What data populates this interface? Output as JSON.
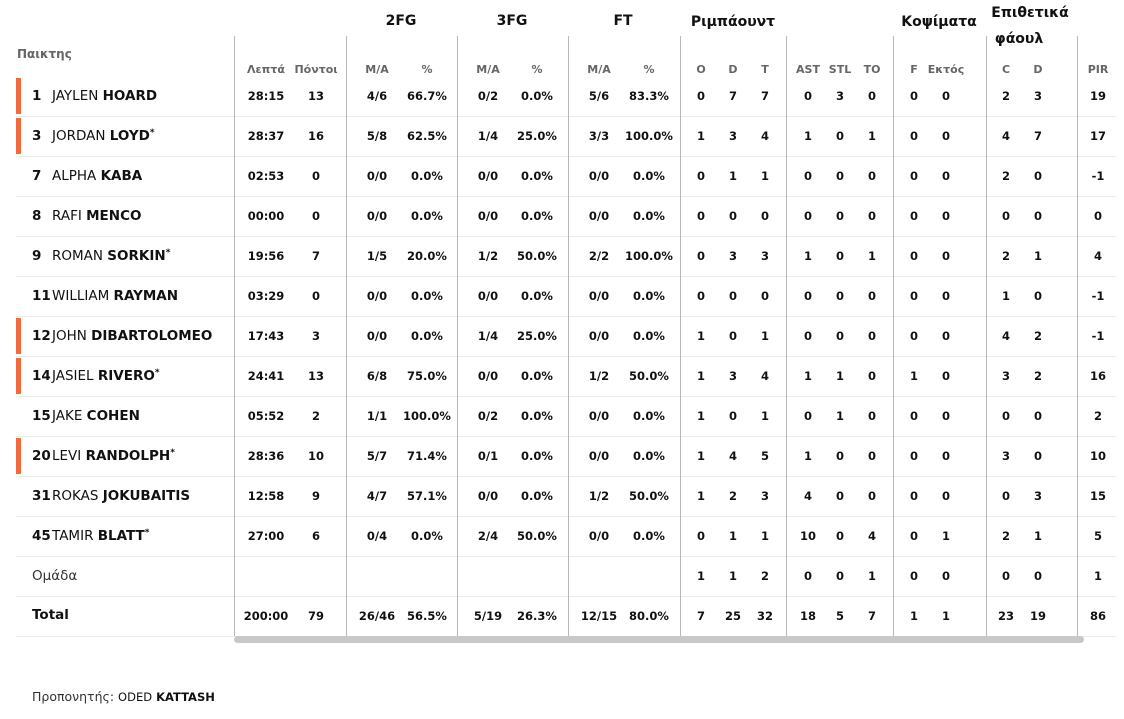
{
  "header": {
    "player_label": "Παικτης",
    "groups": {
      "fg2": "2FG",
      "fg3": "3FG",
      "ft": "FT",
      "reb": "Ριμπάουντ",
      "blk": "Κοψίματα",
      "fouls_line1": "Επιθετικά",
      "fouls_line2": "φάουλ"
    },
    "columns": [
      "Λεπτά",
      "Πόντοι",
      "Μ/Α",
      "%",
      "Μ/Α",
      "%",
      "Μ/Α",
      "%",
      "O",
      "D",
      "T",
      "AST",
      "STL",
      "TO",
      "F",
      "Εκτός",
      "C",
      "D",
      "PIR"
    ]
  },
  "accent_color": "#f26a3b",
  "players": [
    {
      "number": "1",
      "first": "JAYLEN",
      "last": "HOARD",
      "starter": true,
      "star": false,
      "stats": [
        "28:15",
        "13",
        "4/6",
        "66.7%",
        "0/2",
        "0.0%",
        "5/6",
        "83.3%",
        "0",
        "7",
        "7",
        "0",
        "3",
        "0",
        "0",
        "0",
        "2",
        "3",
        "19"
      ]
    },
    {
      "number": "3",
      "first": "JORDAN",
      "last": "LOYD",
      "starter": true,
      "star": true,
      "stats": [
        "28:37",
        "16",
        "5/8",
        "62.5%",
        "1/4",
        "25.0%",
        "3/3",
        "100.0%",
        "1",
        "3",
        "4",
        "1",
        "0",
        "1",
        "0",
        "0",
        "4",
        "7",
        "17"
      ]
    },
    {
      "number": "7",
      "first": "ALPHA",
      "last": "KABA",
      "starter": false,
      "star": false,
      "stats": [
        "02:53",
        "0",
        "0/0",
        "0.0%",
        "0/0",
        "0.0%",
        "0/0",
        "0.0%",
        "0",
        "1",
        "1",
        "0",
        "0",
        "0",
        "0",
        "0",
        "2",
        "0",
        "-1"
      ]
    },
    {
      "number": "8",
      "first": "RAFI",
      "last": "MENCO",
      "starter": false,
      "star": false,
      "stats": [
        "00:00",
        "0",
        "0/0",
        "0.0%",
        "0/0",
        "0.0%",
        "0/0",
        "0.0%",
        "0",
        "0",
        "0",
        "0",
        "0",
        "0",
        "0",
        "0",
        "0",
        "0",
        "0"
      ]
    },
    {
      "number": "9",
      "first": "ROMAN",
      "last": "SORKIN",
      "starter": false,
      "star": true,
      "stats": [
        "19:56",
        "7",
        "1/5",
        "20.0%",
        "1/2",
        "50.0%",
        "2/2",
        "100.0%",
        "0",
        "3",
        "3",
        "1",
        "0",
        "1",
        "0",
        "0",
        "2",
        "1",
        "4"
      ]
    },
    {
      "number": "11",
      "first": "WILLIAM",
      "last": "RAYMAN",
      "starter": false,
      "star": false,
      "stats": [
        "03:29",
        "0",
        "0/0",
        "0.0%",
        "0/0",
        "0.0%",
        "0/0",
        "0.0%",
        "0",
        "0",
        "0",
        "0",
        "0",
        "0",
        "0",
        "0",
        "1",
        "0",
        "-1"
      ]
    },
    {
      "number": "12",
      "first": "JOHN",
      "last": "DIBARTOLOMEO",
      "starter": true,
      "star": false,
      "stats": [
        "17:43",
        "3",
        "0/0",
        "0.0%",
        "1/4",
        "25.0%",
        "0/0",
        "0.0%",
        "1",
        "0",
        "1",
        "0",
        "0",
        "0",
        "0",
        "0",
        "4",
        "2",
        "-1"
      ]
    },
    {
      "number": "14",
      "first": "JASIEL",
      "last": "RIVERO",
      "starter": true,
      "star": true,
      "stats": [
        "24:41",
        "13",
        "6/8",
        "75.0%",
        "0/0",
        "0.0%",
        "1/2",
        "50.0%",
        "1",
        "3",
        "4",
        "1",
        "1",
        "0",
        "1",
        "0",
        "3",
        "2",
        "16"
      ]
    },
    {
      "number": "15",
      "first": "JAKE",
      "last": "COHEN",
      "starter": false,
      "star": false,
      "stats": [
        "05:52",
        "2",
        "1/1",
        "100.0%",
        "0/2",
        "0.0%",
        "0/0",
        "0.0%",
        "1",
        "0",
        "1",
        "0",
        "1",
        "0",
        "0",
        "0",
        "0",
        "0",
        "2"
      ]
    },
    {
      "number": "20",
      "first": "LEVI",
      "last": "RANDOLPH",
      "starter": true,
      "star": true,
      "stats": [
        "28:36",
        "10",
        "5/7",
        "71.4%",
        "0/1",
        "0.0%",
        "0/0",
        "0.0%",
        "1",
        "4",
        "5",
        "1",
        "0",
        "0",
        "0",
        "0",
        "3",
        "0",
        "10"
      ]
    },
    {
      "number": "31",
      "first": "ROKAS",
      "last": "JOKUBAITIS",
      "starter": false,
      "star": false,
      "stats": [
        "12:58",
        "9",
        "4/7",
        "57.1%",
        "0/0",
        "0.0%",
        "1/2",
        "50.0%",
        "1",
        "2",
        "3",
        "4",
        "0",
        "0",
        "0",
        "0",
        "0",
        "3",
        "15"
      ]
    },
    {
      "number": "45",
      "first": "TAMIR",
      "last": "BLATT",
      "starter": false,
      "star": true,
      "stats": [
        "27:00",
        "6",
        "0/4",
        "0.0%",
        "2/4",
        "50.0%",
        "0/0",
        "0.0%",
        "0",
        "1",
        "1",
        "10",
        "0",
        "4",
        "0",
        "1",
        "2",
        "1",
        "5"
      ]
    }
  ],
  "team": {
    "label": "Ομάδα",
    "stats": [
      "",
      "",
      "",
      "",
      "",
      "",
      "",
      "",
      "1",
      "1",
      "2",
      "0",
      "0",
      "1",
      "0",
      "0",
      "0",
      "0",
      "1"
    ]
  },
  "total": {
    "label": "Total",
    "stats": [
      "200:00",
      "79",
      "26/46",
      "56.5%",
      "5/19",
      "26.3%",
      "12/15",
      "80.0%",
      "7",
      "25",
      "32",
      "18",
      "5",
      "7",
      "1",
      "1",
      "23",
      "19",
      "86"
    ]
  },
  "coach": {
    "label": "Προπονητής:",
    "first": "ODED",
    "last": "KATTASH"
  }
}
